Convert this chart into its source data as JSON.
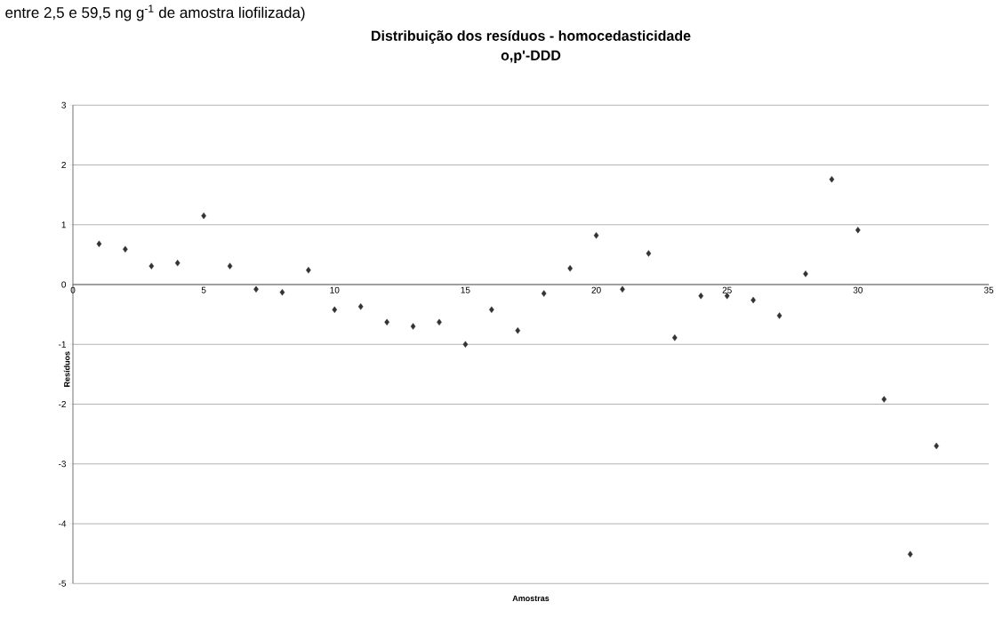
{
  "chart_data": {
    "type": "scatter",
    "title": "Distribuição dos resíduos - homocedasticidade",
    "subtitle": "o,p'-DDD",
    "xlabel": "Amostras",
    "ylabel": "Resíduos",
    "annotations": [
      "entre 2,5 e 59,5 ng g$^{-1}$ de amostra liofilizada)"
    ],
    "x": [
      1,
      2,
      3,
      4,
      5,
      6,
      7,
      8,
      9,
      10,
      11,
      12,
      13,
      14,
      15,
      16,
      17,
      18,
      19,
      20,
      21,
      22,
      23,
      24,
      25,
      26,
      27,
      28,
      29,
      30,
      31,
      32,
      33
    ],
    "values": [
      0.68,
      0.59,
      0.31,
      0.36,
      1.15,
      0.31,
      -0.08,
      -0.13,
      0.24,
      -0.42,
      -0.37,
      -0.63,
      -0.7,
      -0.63,
      -1.0,
      -0.42,
      -0.77,
      -0.15,
      0.27,
      0.82,
      -0.08,
      0.52,
      -0.89,
      -0.19,
      -0.19,
      -0.26,
      -0.52,
      0.18,
      1.76,
      0.91,
      -1.92,
      -4.51,
      -2.7
    ],
    "color": "#333333",
    "marker": "diamond",
    "xlim": [
      0,
      35
    ],
    "ylim": [
      -5,
      3
    ],
    "xticks": [
      0,
      5,
      10,
      15,
      20,
      25,
      30,
      35
    ],
    "yticks": [
      -5,
      -4,
      -3,
      -2,
      -1,
      0,
      1,
      2,
      3
    ],
    "grid": "y"
  }
}
